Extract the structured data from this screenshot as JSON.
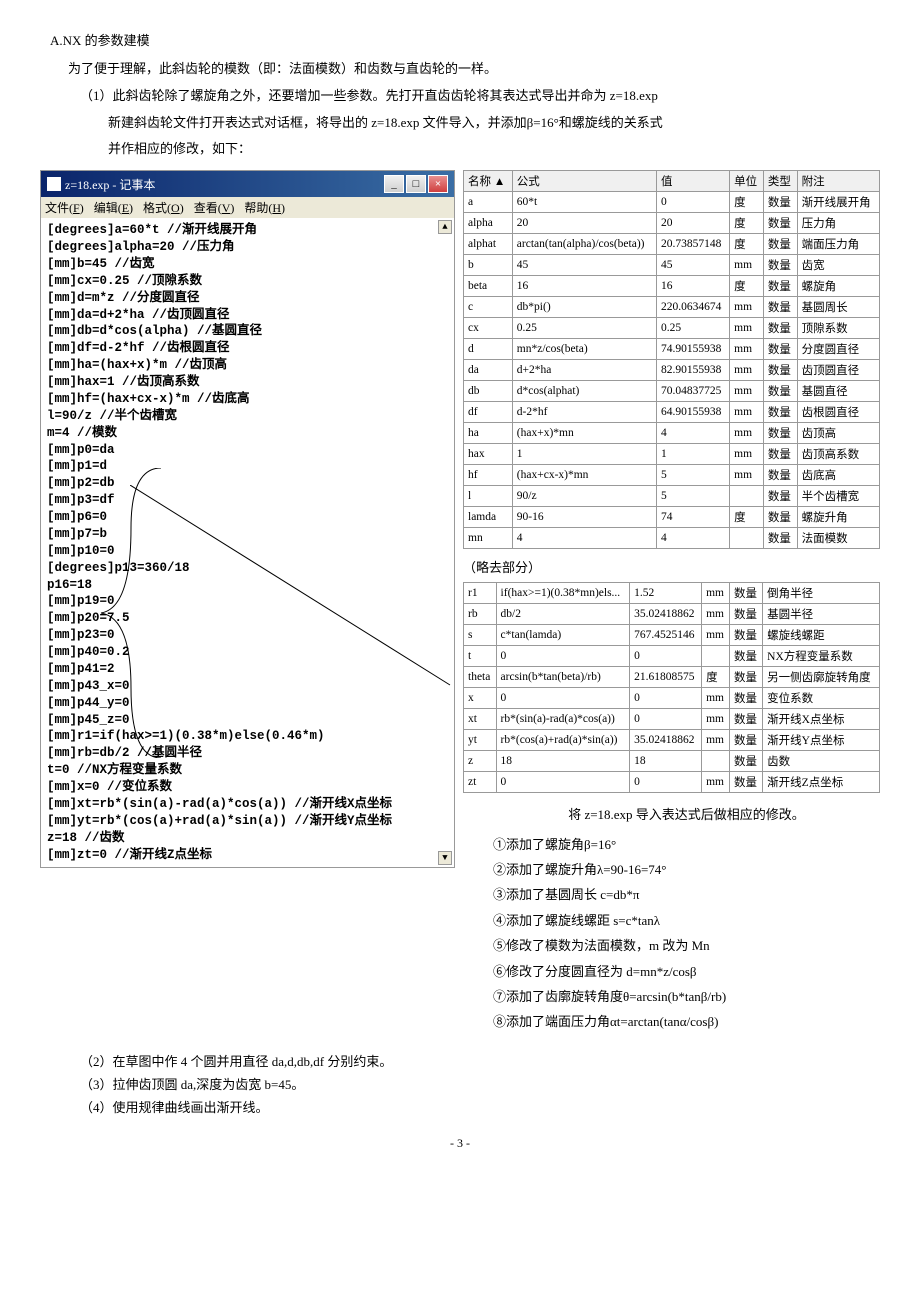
{
  "heading": "A.NX 的参数建模",
  "intro": "为了便于理解，此斜齿轮的模数（即：法面模数）和齿数与直齿轮的一样。",
  "step1_a": "（1）此斜齿轮除了螺旋角之外，还要增加一些参数。先打开直齿齿轮将其表达式导出并命为 z=18.exp",
  "step1_b": "新建斜齿轮文件打开表达式对话框，将导出的 z=18.exp 文件导入，并添加β=16°和螺旋线的关系式",
  "step1_c": "并作相应的修改，如下：",
  "notepad": {
    "title": "z=18.exp - 记事本",
    "menu": "文件(F) 编辑(E) 格式(O) 查看(V) 帮助(H)",
    "lines": [
      "[degrees]a=60*t //渐开线展开角",
      "[degrees]alpha=20 //压力角",
      "[mm]b=45 //齿宽",
      "[mm]cx=0.25 //顶隙系数",
      "[mm]d=m*z //分度圆直径",
      "[mm]da=d+2*ha //齿顶圆直径",
      "[mm]db=d*cos(alpha) //基圆直径",
      "[mm]df=d-2*hf //齿根圆直径",
      "[mm]ha=(hax+x)*m //齿顶高",
      "[mm]hax=1 //齿顶高系数",
      "[mm]hf=(hax+cx-x)*m //齿底高",
      "l=90/z //半个齿槽宽",
      "m=4 //模数",
      "[mm]p0=da",
      "[mm]p1=d",
      "[mm]p2=db",
      "[mm]p3=df",
      "[mm]p6=0",
      "[mm]p7=b",
      "[mm]p10=0",
      "[degrees]p13=360/18",
      "p16=18",
      "[mm]p19=0",
      "[mm]p20=7.5",
      "[mm]p23=0",
      "[mm]p40=0.2",
      "[mm]p41=2",
      "[mm]p43_x=0",
      "[mm]p44_y=0",
      "[mm]p45_z=0",
      "[mm]r1=if(hax>=1)(0.38*m)else(0.46*m)",
      "[mm]rb=db/2 //基圆半径",
      "t=0 //NX方程变量系数",
      "[mm]x=0 //变位系数",
      "[mm]xt=rb*(sin(a)-rad(a)*cos(a)) //渐开线X点坐标",
      "[mm]yt=rb*(cos(a)+rad(a)*sin(a)) //渐开线Y点坐标",
      "z=18 //齿数",
      "[mm]zt=0 //渐开线Z点坐标"
    ]
  },
  "table1": {
    "headers": [
      "名称",
      "公式",
      "值",
      "单位",
      "类型",
      "附注"
    ],
    "rows": [
      [
        "a",
        "60*t",
        "0",
        "度",
        "数量",
        "渐开线展开角"
      ],
      [
        "alpha",
        "20",
        "20",
        "度",
        "数量",
        "压力角"
      ],
      [
        "alphat",
        "arctan(tan(alpha)/cos(beta))",
        "20.73857148",
        "度",
        "数量",
        "端面压力角"
      ],
      [
        "b",
        "45",
        "45",
        "mm",
        "数量",
        "齿宽"
      ],
      [
        "beta",
        "16",
        "16",
        "度",
        "数量",
        "螺旋角"
      ],
      [
        "c",
        "db*pi()",
        "220.0634674",
        "mm",
        "数量",
        "基圆周长"
      ],
      [
        "cx",
        "0.25",
        "0.25",
        "mm",
        "数量",
        "顶隙系数"
      ],
      [
        "d",
        "mn*z/cos(beta)",
        "74.90155938",
        "mm",
        "数量",
        "分度圆直径"
      ],
      [
        "da",
        "d+2*ha",
        "82.90155938",
        "mm",
        "数量",
        "齿顶圆直径"
      ],
      [
        "db",
        "d*cos(alphat)",
        "70.04837725",
        "mm",
        "数量",
        "基圆直径"
      ],
      [
        "df",
        "d-2*hf",
        "64.90155938",
        "mm",
        "数量",
        "齿根圆直径"
      ],
      [
        "ha",
        "(hax+x)*mn",
        "4",
        "mm",
        "数量",
        "齿顶高"
      ],
      [
        "hax",
        "1",
        "1",
        "mm",
        "数量",
        "齿顶高系数"
      ],
      [
        "hf",
        "(hax+cx-x)*mn",
        "5",
        "mm",
        "数量",
        "齿底高"
      ],
      [
        "l",
        "90/z",
        "5",
        "",
        "数量",
        "半个齿槽宽"
      ],
      [
        "lamda",
        "90-16",
        "74",
        "度",
        "数量",
        "螺旋升角"
      ],
      [
        "mn",
        "4",
        "4",
        "",
        "数量",
        "法面模数"
      ]
    ]
  },
  "omit_text": "（略去部分）",
  "table2": {
    "rows": [
      [
        "r1",
        "if(hax>=1)(0.38*mn)els...",
        "1.52",
        "mm",
        "数量",
        "倒角半径"
      ],
      [
        "rb",
        "db/2",
        "35.02418862",
        "mm",
        "数量",
        "基圆半径"
      ],
      [
        "s",
        "c*tan(lamda)",
        "767.4525146",
        "mm",
        "数量",
        "螺旋线螺距"
      ],
      [
        "t",
        "0",
        "0",
        "",
        "数量",
        "NX方程变量系数"
      ],
      [
        "theta",
        "arcsin(b*tan(beta)/rb)",
        "21.61808575",
        "度",
        "数量",
        "另一侧齿廓旋转角度"
      ],
      [
        "x",
        "0",
        "0",
        "mm",
        "数量",
        "变位系数"
      ],
      [
        "xt",
        "rb*(sin(a)-rad(a)*cos(a))",
        "0",
        "mm",
        "数量",
        "渐开线X点坐标"
      ],
      [
        "yt",
        "rb*(cos(a)+rad(a)*sin(a))",
        "35.02418862",
        "mm",
        "数量",
        "渐开线Y点坐标"
      ],
      [
        "z",
        "18",
        "18",
        "",
        "数量",
        "齿数"
      ],
      [
        "zt",
        "0",
        "0",
        "mm",
        "数量",
        "渐开线Z点坐标"
      ]
    ]
  },
  "notes_title": "将 z=18.exp 导入表达式后做相应的修改。",
  "notes": [
    "①添加了螺旋角β=16°",
    "②添加了螺旋升角λ=90-16=74°",
    "③添加了基圆周长 c=db*π",
    "④添加了螺旋线螺距 s=c*tanλ",
    "⑤修改了模数为法面模数，m 改为 Mn",
    "⑥修改了分度圆直径为 d=mn*z/cosβ",
    "⑦添加了齿廓旋转角度θ=arcsin(b*tanβ/rb)",
    "⑧添加了端面压力角αt=arctan(tanα/cosβ)"
  ],
  "bottom": [
    "（2）在草图中作 4 个圆并用直径 da,d,db,df 分别约束。",
    "（3）拉伸齿顶圆 da,深度为齿宽 b=45。",
    "（4）使用规律曲线画出渐开线。"
  ],
  "page_num": "- 3 -"
}
